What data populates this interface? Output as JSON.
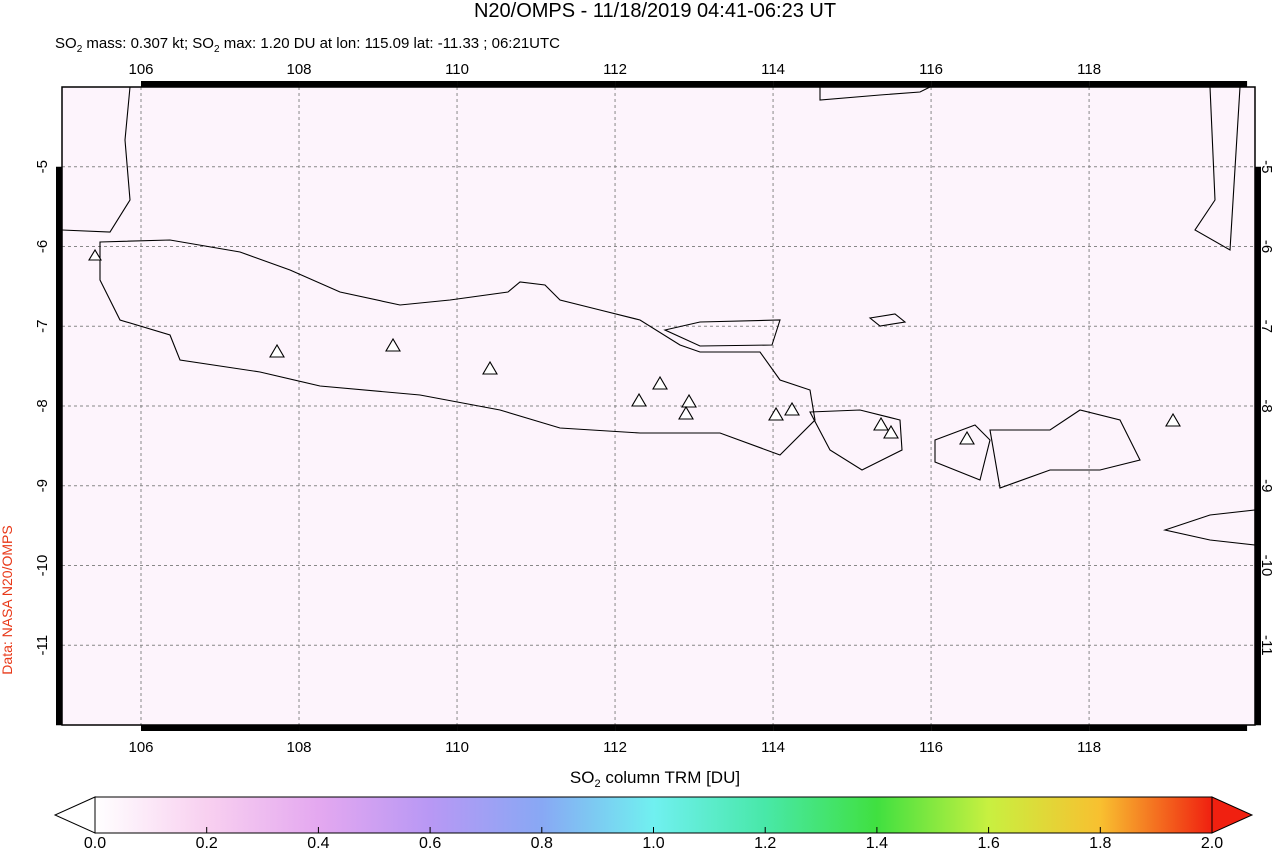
{
  "map": {
    "title": "N20/OMPS - 11/18/2019 04:41-06:23 UT",
    "subtitle_parts": [
      "SO",
      "2",
      " mass: 0.307 kt; SO",
      "2",
      " max: 1.20 DU at lon: 115.09 lat: -11.33 ; 06:21UTC"
    ],
    "credit": "Data: NASA N20/OMPS",
    "lon_range": [
      105,
      120.1
    ],
    "lat_range": [
      -4,
      -12
    ],
    "lon_ticks": [
      106,
      108,
      110,
      112,
      114,
      116,
      118
    ],
    "lat_ticks": [
      -5,
      -6,
      -7,
      -8,
      -9,
      -10,
      -11
    ],
    "colorbar": {
      "label_parts": [
        "SO",
        "2",
        " column TRM [DU]"
      ],
      "range": [
        0,
        2
      ],
      "ticks": [
        {
          "value": 0,
          "label": "0.0"
        },
        {
          "value": 0.2,
          "label": "0.2"
        },
        {
          "value": 0.4,
          "label": "0.4"
        },
        {
          "value": 0.6,
          "label": "0.6"
        },
        {
          "value": 0.8,
          "label": "0.8"
        },
        {
          "value": 1,
          "label": "1.0"
        },
        {
          "value": 1.2,
          "label": "1.2"
        },
        {
          "value": 1.4,
          "label": "1.4"
        },
        {
          "value": 1.6,
          "label": "1.6"
        },
        {
          "value": 1.8,
          "label": "1.8"
        },
        {
          "value": 2,
          "label": "2.0"
        }
      ],
      "colors": [
        "#ffffff",
        "#f8d0f0",
        "#e4a8f0",
        "#b898f4",
        "#88a8f4",
        "#70f0f0",
        "#48e8a8",
        "#40e040",
        "#c8f040",
        "#f8c030",
        "#f02010"
      ]
    }
  }
}
